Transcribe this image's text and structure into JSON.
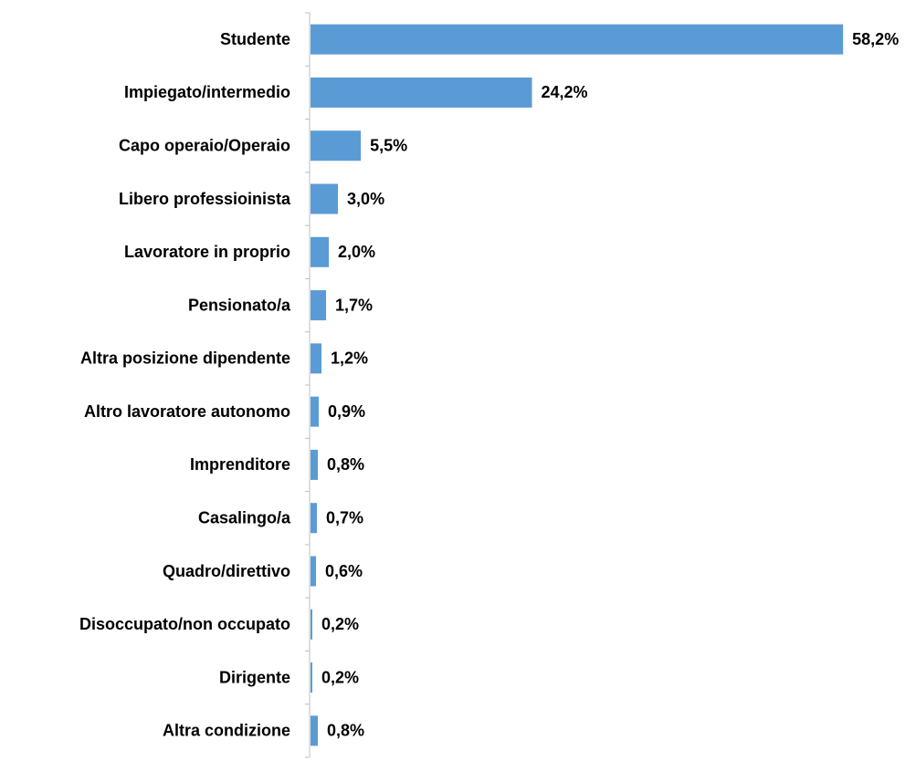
{
  "chart_data": {
    "type": "bar",
    "orientation": "horizontal",
    "categories": [
      "Studente",
      "Impiegato/intermedio",
      "Capo operaio/Operaio",
      "Libero professioinista",
      "Lavoratore in proprio",
      "Pensionato/a",
      "Altra posizione dipendente",
      "Altro lavoratore autonomo",
      "Imprenditore",
      "Casalingo/a",
      "Quadro/direttivo",
      "Disoccupato/non occupato",
      "Dirigente",
      "Altra condizione"
    ],
    "values": [
      58.2,
      24.2,
      5.5,
      3.0,
      2.0,
      1.7,
      1.2,
      0.9,
      0.8,
      0.7,
      0.6,
      0.2,
      0.2,
      0.8
    ],
    "value_labels": [
      "58,2%",
      "24,2%",
      "5,5%",
      "3,0%",
      "2,0%",
      "1,7%",
      "1,2%",
      "0,9%",
      "0,8%",
      "0,7%",
      "0,6%",
      "0,2%",
      "0,2%",
      "0,8%"
    ],
    "color": "#5b9bd5"
  }
}
